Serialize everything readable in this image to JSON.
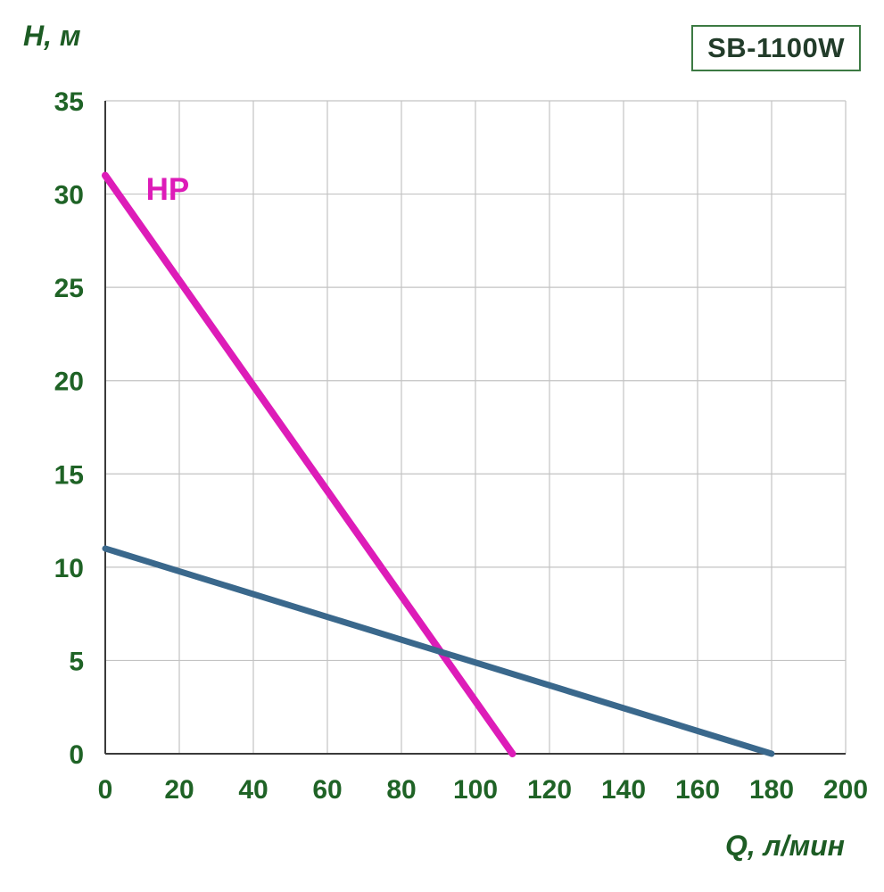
{
  "badge": {
    "label": "SB-1100W"
  },
  "axes": {
    "y_title": "H, м",
    "x_title": "Q, л/мин"
  },
  "chart_data": {
    "type": "line",
    "title": "",
    "xlabel": "Q, л/мин",
    "ylabel": "H, м",
    "xlim": [
      0,
      200
    ],
    "ylim": [
      0,
      35
    ],
    "xticks": [
      0,
      20,
      40,
      60,
      80,
      100,
      120,
      140,
      160,
      180,
      200
    ],
    "yticks": [
      0,
      5,
      10,
      15,
      20,
      25,
      30,
      35
    ],
    "grid": true,
    "grid_color": "#c3c3c3",
    "axis_color": "#3a3a3a",
    "tick_label_color": "#1f6326",
    "legend_position": "none",
    "series": [
      {
        "name": "HP",
        "label": "HP",
        "label_pos": [
          11,
          29.7
        ],
        "color": "#dd1cb8",
        "width": 8,
        "points": [
          [
            0,
            31
          ],
          [
            110,
            0
          ]
        ]
      },
      {
        "name": "pump-flow-curve",
        "label": "",
        "label_pos": null,
        "color": "#3a688c",
        "width": 7,
        "points": [
          [
            0,
            11
          ],
          [
            180,
            0
          ]
        ]
      }
    ]
  }
}
